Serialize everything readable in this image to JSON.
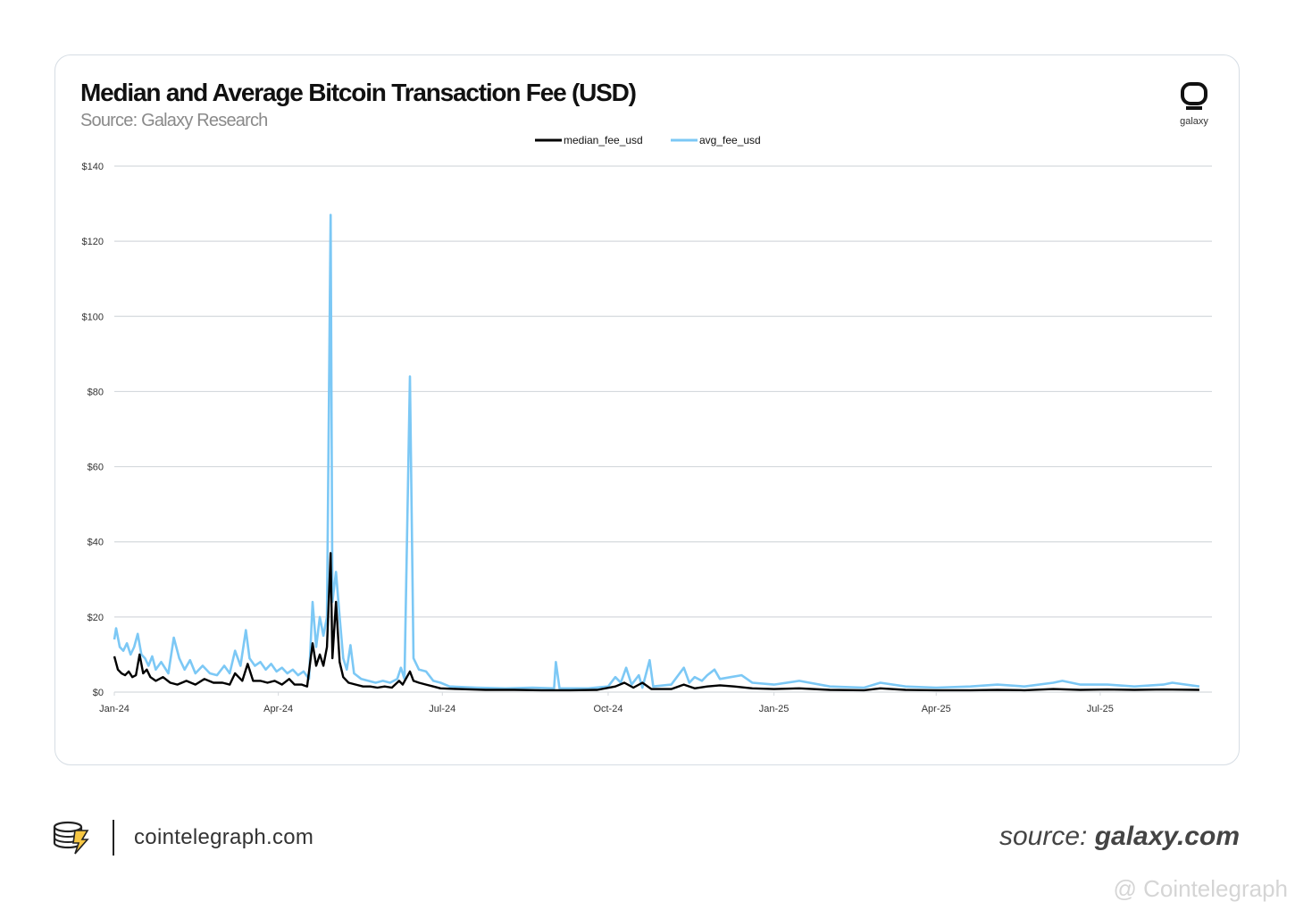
{
  "header": {
    "title": "Median and Average Bitcoin Transaction Fee (USD)",
    "subtitle": "Source: Galaxy Research",
    "logo_word": "galaxy"
  },
  "footer": {
    "site": "cointelegraph.com",
    "source_prefix": "source: ",
    "source_domain": "galaxy.com",
    "watermark": "@ Cointelegraph"
  },
  "colors": {
    "median": "#000000",
    "avg": "#7cc8f5",
    "grid": "#d5d9dd"
  },
  "chart_data": {
    "type": "line",
    "title": "Median and Average Bitcoin Transaction Fee (USD)",
    "subtitle": "Source: Galaxy Research",
    "legend_position": "top-center",
    "grid": true,
    "ylim": [
      0,
      140
    ],
    "yticks": [
      {
        "value": 0,
        "label": "$0"
      },
      {
        "value": 20,
        "label": "$20"
      },
      {
        "value": 40,
        "label": "$40"
      },
      {
        "value": 60,
        "label": "$60"
      },
      {
        "value": 80,
        "label": "$80"
      },
      {
        "value": 100,
        "label": "$100"
      },
      {
        "value": 120,
        "label": "$120"
      },
      {
        "value": 140,
        "label": "$140"
      }
    ],
    "xlim": [
      "2024-01-01",
      "2025-09-01"
    ],
    "xticks": [
      {
        "date": "2024-01-01",
        "label": "Jan-24"
      },
      {
        "date": "2024-04-01",
        "label": "Apr-24"
      },
      {
        "date": "2024-07-01",
        "label": "Jul-24"
      },
      {
        "date": "2024-10-01",
        "label": "Oct-24"
      },
      {
        "date": "2025-01-01",
        "label": "Jan-25"
      },
      {
        "date": "2025-04-01",
        "label": "Apr-25"
      },
      {
        "date": "2025-07-01",
        "label": "Jul-25"
      }
    ],
    "series": [
      {
        "name": "median_fee_usd",
        "color": "#000000",
        "points": [
          [
            "2024-01-01",
            9.5
          ],
          [
            "2024-01-03",
            6
          ],
          [
            "2024-01-05",
            5
          ],
          [
            "2024-01-07",
            4.5
          ],
          [
            "2024-01-09",
            5.5
          ],
          [
            "2024-01-11",
            4
          ],
          [
            "2024-01-13",
            4.5
          ],
          [
            "2024-01-15",
            10
          ],
          [
            "2024-01-17",
            5
          ],
          [
            "2024-01-19",
            6
          ],
          [
            "2024-01-21",
            4
          ],
          [
            "2024-01-24",
            3
          ],
          [
            "2024-01-28",
            4
          ],
          [
            "2024-02-01",
            2.5
          ],
          [
            "2024-02-05",
            2
          ],
          [
            "2024-02-10",
            3
          ],
          [
            "2024-02-15",
            2
          ],
          [
            "2024-02-20",
            3.5
          ],
          [
            "2024-02-25",
            2.5
          ],
          [
            "2024-03-01",
            2.5
          ],
          [
            "2024-03-05",
            2
          ],
          [
            "2024-03-08",
            5
          ],
          [
            "2024-03-12",
            3
          ],
          [
            "2024-03-15",
            7.5
          ],
          [
            "2024-03-18",
            3
          ],
          [
            "2024-03-22",
            3
          ],
          [
            "2024-03-26",
            2.5
          ],
          [
            "2024-03-30",
            3
          ],
          [
            "2024-04-03",
            2
          ],
          [
            "2024-04-07",
            3.5
          ],
          [
            "2024-04-10",
            2
          ],
          [
            "2024-04-14",
            2
          ],
          [
            "2024-04-17",
            1.5
          ],
          [
            "2024-04-20",
            13
          ],
          [
            "2024-04-22",
            7
          ],
          [
            "2024-04-24",
            10
          ],
          [
            "2024-04-26",
            7
          ],
          [
            "2024-04-28",
            12
          ],
          [
            "2024-04-30",
            37
          ],
          [
            "2024-05-01",
            9
          ],
          [
            "2024-05-03",
            24
          ],
          [
            "2024-05-05",
            8
          ],
          [
            "2024-05-07",
            4
          ],
          [
            "2024-05-10",
            2.5
          ],
          [
            "2024-05-14",
            2
          ],
          [
            "2024-05-18",
            1.5
          ],
          [
            "2024-05-22",
            1.5
          ],
          [
            "2024-05-26",
            1.2
          ],
          [
            "2024-05-30",
            1.5
          ],
          [
            "2024-06-03",
            1.2
          ],
          [
            "2024-06-07",
            3
          ],
          [
            "2024-06-09",
            2
          ],
          [
            "2024-06-13",
            5.5
          ],
          [
            "2024-06-15",
            3
          ],
          [
            "2024-06-18",
            2.5
          ],
          [
            "2024-06-22",
            2
          ],
          [
            "2024-06-26",
            1.5
          ],
          [
            "2024-06-30",
            1
          ],
          [
            "2024-07-10",
            0.8
          ],
          [
            "2024-07-25",
            0.6
          ],
          [
            "2024-08-10",
            0.6
          ],
          [
            "2024-08-25",
            0.5
          ],
          [
            "2024-09-10",
            0.5
          ],
          [
            "2024-09-25",
            0.6
          ],
          [
            "2024-10-05",
            1.5
          ],
          [
            "2024-10-10",
            2.5
          ],
          [
            "2024-10-15",
            1.2
          ],
          [
            "2024-10-20",
            2.5
          ],
          [
            "2024-10-25",
            0.8
          ],
          [
            "2024-11-05",
            0.8
          ],
          [
            "2024-11-12",
            2
          ],
          [
            "2024-11-18",
            1
          ],
          [
            "2024-11-25",
            1.5
          ],
          [
            "2024-12-02",
            1.8
          ],
          [
            "2024-12-10",
            1.5
          ],
          [
            "2024-12-20",
            1
          ],
          [
            "2025-01-01",
            0.8
          ],
          [
            "2025-01-15",
            1
          ],
          [
            "2025-02-01",
            0.6
          ],
          [
            "2025-02-20",
            0.5
          ],
          [
            "2025-03-01",
            1
          ],
          [
            "2025-03-15",
            0.6
          ],
          [
            "2025-04-01",
            0.5
          ],
          [
            "2025-04-20",
            0.5
          ],
          [
            "2025-05-05",
            0.6
          ],
          [
            "2025-05-20",
            0.5
          ],
          [
            "2025-06-05",
            0.8
          ],
          [
            "2025-06-20",
            0.6
          ],
          [
            "2025-07-05",
            0.7
          ],
          [
            "2025-07-20",
            0.6
          ],
          [
            "2025-08-05",
            0.7
          ],
          [
            "2025-08-25",
            0.6
          ]
        ]
      },
      {
        "name": "avg_fee_usd",
        "color": "#7cc8f5",
        "points": [
          [
            "2024-01-01",
            14
          ],
          [
            "2024-01-02",
            17
          ],
          [
            "2024-01-04",
            12
          ],
          [
            "2024-01-06",
            11
          ],
          [
            "2024-01-08",
            13
          ],
          [
            "2024-01-10",
            10
          ],
          [
            "2024-01-12",
            12
          ],
          [
            "2024-01-14",
            15.5
          ],
          [
            "2024-01-16",
            10
          ],
          [
            "2024-01-18",
            9
          ],
          [
            "2024-01-20",
            7
          ],
          [
            "2024-01-22",
            9.5
          ],
          [
            "2024-01-24",
            6
          ],
          [
            "2024-01-27",
            8
          ],
          [
            "2024-01-31",
            5
          ],
          [
            "2024-02-03",
            14.5
          ],
          [
            "2024-02-06",
            9
          ],
          [
            "2024-02-09",
            6
          ],
          [
            "2024-02-12",
            8.5
          ],
          [
            "2024-02-15",
            5
          ],
          [
            "2024-02-19",
            7
          ],
          [
            "2024-02-23",
            5
          ],
          [
            "2024-02-27",
            4.5
          ],
          [
            "2024-03-02",
            7
          ],
          [
            "2024-03-05",
            5
          ],
          [
            "2024-03-08",
            11
          ],
          [
            "2024-03-11",
            7
          ],
          [
            "2024-03-14",
            16.5
          ],
          [
            "2024-03-16",
            9
          ],
          [
            "2024-03-19",
            7
          ],
          [
            "2024-03-22",
            8
          ],
          [
            "2024-03-25",
            6
          ],
          [
            "2024-03-28",
            7.5
          ],
          [
            "2024-03-31",
            5.5
          ],
          [
            "2024-04-03",
            6.5
          ],
          [
            "2024-04-06",
            5
          ],
          [
            "2024-04-09",
            6
          ],
          [
            "2024-04-12",
            4.5
          ],
          [
            "2024-04-15",
            5.5
          ],
          [
            "2024-04-18",
            3.5
          ],
          [
            "2024-04-20",
            24
          ],
          [
            "2024-04-22",
            12
          ],
          [
            "2024-04-24",
            20
          ],
          [
            "2024-04-26",
            15
          ],
          [
            "2024-04-28",
            20
          ],
          [
            "2024-04-30",
            127
          ],
          [
            "2024-05-01",
            24
          ],
          [
            "2024-05-03",
            32
          ],
          [
            "2024-05-05",
            20
          ],
          [
            "2024-05-07",
            9
          ],
          [
            "2024-05-09",
            6
          ],
          [
            "2024-05-11",
            12.5
          ],
          [
            "2024-05-13",
            5
          ],
          [
            "2024-05-17",
            3.5
          ],
          [
            "2024-05-21",
            3
          ],
          [
            "2024-05-25",
            2.5
          ],
          [
            "2024-05-29",
            3
          ],
          [
            "2024-06-02",
            2.5
          ],
          [
            "2024-06-06",
            3.5
          ],
          [
            "2024-06-08",
            6.5
          ],
          [
            "2024-06-10",
            3.5
          ],
          [
            "2024-06-13",
            84
          ],
          [
            "2024-06-15",
            9
          ],
          [
            "2024-06-18",
            6
          ],
          [
            "2024-06-22",
            5.5
          ],
          [
            "2024-06-26",
            3
          ],
          [
            "2024-06-30",
            2.5
          ],
          [
            "2024-07-05",
            1.5
          ],
          [
            "2024-07-20",
            1.2
          ],
          [
            "2024-08-05",
            1
          ],
          [
            "2024-08-20",
            1.2
          ],
          [
            "2024-09-01",
            1
          ],
          [
            "2024-09-02",
            8
          ],
          [
            "2024-09-04",
            1
          ],
          [
            "2024-09-20",
            1
          ],
          [
            "2024-10-01",
            1.5
          ],
          [
            "2024-10-05",
            4
          ],
          [
            "2024-10-08",
            2.5
          ],
          [
            "2024-10-11",
            6.5
          ],
          [
            "2024-10-14",
            2
          ],
          [
            "2024-10-18",
            4.5
          ],
          [
            "2024-10-20",
            1.2
          ],
          [
            "2024-10-24",
            8.5
          ],
          [
            "2024-10-26",
            1.5
          ],
          [
            "2024-11-05",
            2
          ],
          [
            "2024-11-12",
            6.5
          ],
          [
            "2024-11-15",
            2.5
          ],
          [
            "2024-11-18",
            4
          ],
          [
            "2024-11-22",
            3
          ],
          [
            "2024-11-25",
            4.5
          ],
          [
            "2024-11-29",
            6
          ],
          [
            "2024-12-02",
            3.5
          ],
          [
            "2024-12-08",
            4
          ],
          [
            "2024-12-14",
            4.5
          ],
          [
            "2024-12-20",
            2.5
          ],
          [
            "2025-01-01",
            2
          ],
          [
            "2025-01-15",
            3
          ],
          [
            "2025-02-01",
            1.5
          ],
          [
            "2025-02-20",
            1.2
          ],
          [
            "2025-03-01",
            2.5
          ],
          [
            "2025-03-15",
            1.5
          ],
          [
            "2025-04-01",
            1.2
          ],
          [
            "2025-04-20",
            1.5
          ],
          [
            "2025-05-05",
            2
          ],
          [
            "2025-05-20",
            1.5
          ],
          [
            "2025-06-05",
            2.5
          ],
          [
            "2025-06-10",
            3
          ],
          [
            "2025-06-20",
            2
          ],
          [
            "2025-07-05",
            2
          ],
          [
            "2025-07-20",
            1.5
          ],
          [
            "2025-08-05",
            2
          ],
          [
            "2025-08-10",
            2.5
          ],
          [
            "2025-08-25",
            1.5
          ]
        ]
      }
    ]
  }
}
